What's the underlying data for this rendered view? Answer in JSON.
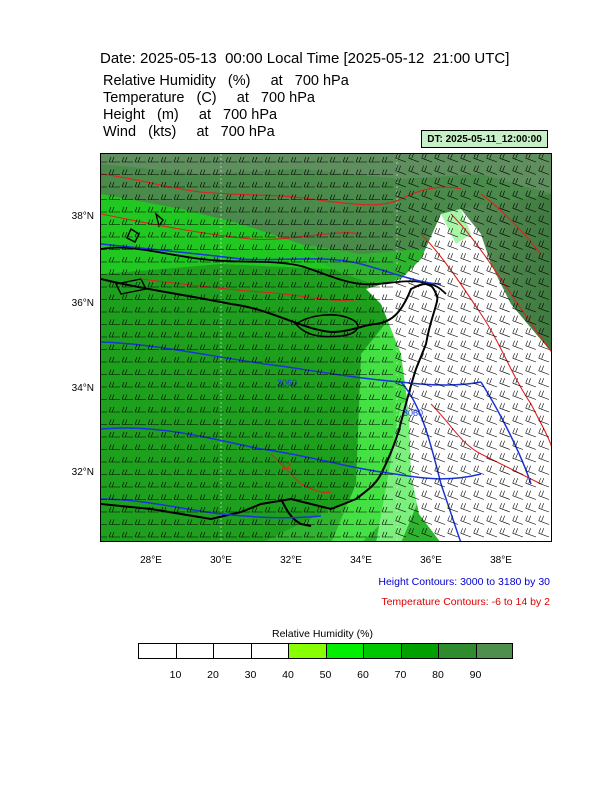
{
  "header": {
    "title": "Date: 2025-05-13  00:00 Local Time [2025-05-12  21:00 UTC]",
    "lines": [
      "Relative Humidity   (%)     at   700 hPa",
      "Temperature   (C)     at   700 hPa",
      "Height   (m)     at   700 hPa",
      "Wind   (kts)     at   700 hPa"
    ],
    "dt_badge": "DT: 2025-05-11_12:00:00"
  },
  "map": {
    "lat_labels": [
      "38°N",
      "36°N",
      "34°N",
      "32°N"
    ],
    "lon_labels": [
      "28°E",
      "30°E",
      "32°E",
      "34°E",
      "36°E",
      "38°E"
    ],
    "height_contour_labels": [
      "3060",
      "3060"
    ],
    "temperature_contour_labels": [
      "12"
    ],
    "colors": {
      "height_contour": "#1a35d8",
      "temperature_contour": "#e02020",
      "coastline": "#000000",
      "wind_barb": "#000000"
    }
  },
  "notes": {
    "height": "Height Contours: 3000 to 3180 by 30",
    "temperature": "Temperature Contours: -6 to 14 by 2",
    "height_color": "#0000cc",
    "temperature_color": "#dd0000"
  },
  "colorbar": {
    "title": "Relative Humidity  (%)",
    "ticks": [
      "10",
      "20",
      "30",
      "40",
      "50",
      "60",
      "70",
      "80",
      "90"
    ],
    "colors": [
      "#ffffff",
      "#ffffff",
      "#ffffff",
      "#ffffff",
      "#88ff00",
      "#00ee00",
      "#00c800",
      "#00a000",
      "#2e8b2e",
      "#4e8f4e"
    ]
  }
}
